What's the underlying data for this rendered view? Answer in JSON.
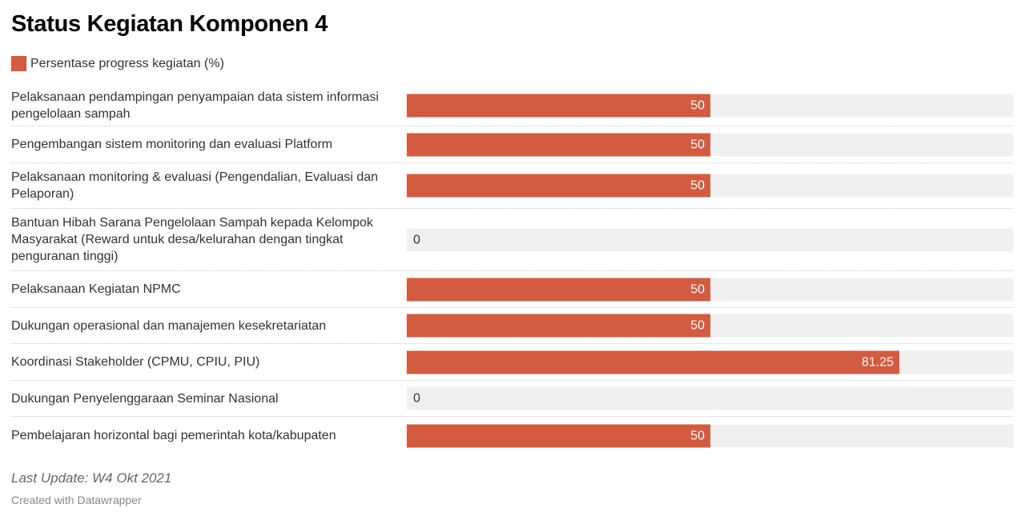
{
  "header": {
    "title": "Status Kegiatan Komponen 4"
  },
  "legend": {
    "label": "Persentase progress kegiatan (%)"
  },
  "footer": {
    "notes": "Last Update: W4 Okt 2021",
    "credit": "Created with Datawrapper"
  },
  "chart_data": {
    "type": "bar",
    "orientation": "horizontal",
    "title": "Status Kegiatan Komponen 4",
    "xlim": [
      0,
      100
    ],
    "color": "#d35b3f",
    "track_color": "#f0f0f0",
    "legend_position": "top-left",
    "grid": false,
    "series": [
      {
        "name": "Persentase progress kegiatan (%)"
      }
    ],
    "categories": [
      "Pelaksanaan pendampingan penyampaian data sistem informasi pengelolaan sampah",
      "Pengembangan sistem monitoring dan evaluasi Platform",
      "Pelaksanaan monitoring & evaluasi (Pengendalian, Evaluasi dan Pelaporan)",
      "Bantuan Hibah Sarana Pengelolaan Sampah kepada Kelompok Masyarakat (Reward untuk desa/kelurahan dengan tingkat penguranan tinggi)",
      "Pelaksanaan Kegiatan NPMC",
      "Dukungan operasional dan manajemen kesekretariatan",
      "Koordinasi Stakeholder (CPMU, CPIU, PIU)",
      "Dukungan Penyelenggaraan Seminar Nasional",
      "Pembelajaran horizontal bagi pemerintah kota/kabupaten"
    ],
    "values": [
      50,
      50,
      50,
      0,
      50,
      50,
      81.25,
      0,
      50
    ],
    "value_labels": [
      "50",
      "50",
      "50",
      "0",
      "50",
      "50",
      "81.25",
      "0",
      "50"
    ]
  }
}
